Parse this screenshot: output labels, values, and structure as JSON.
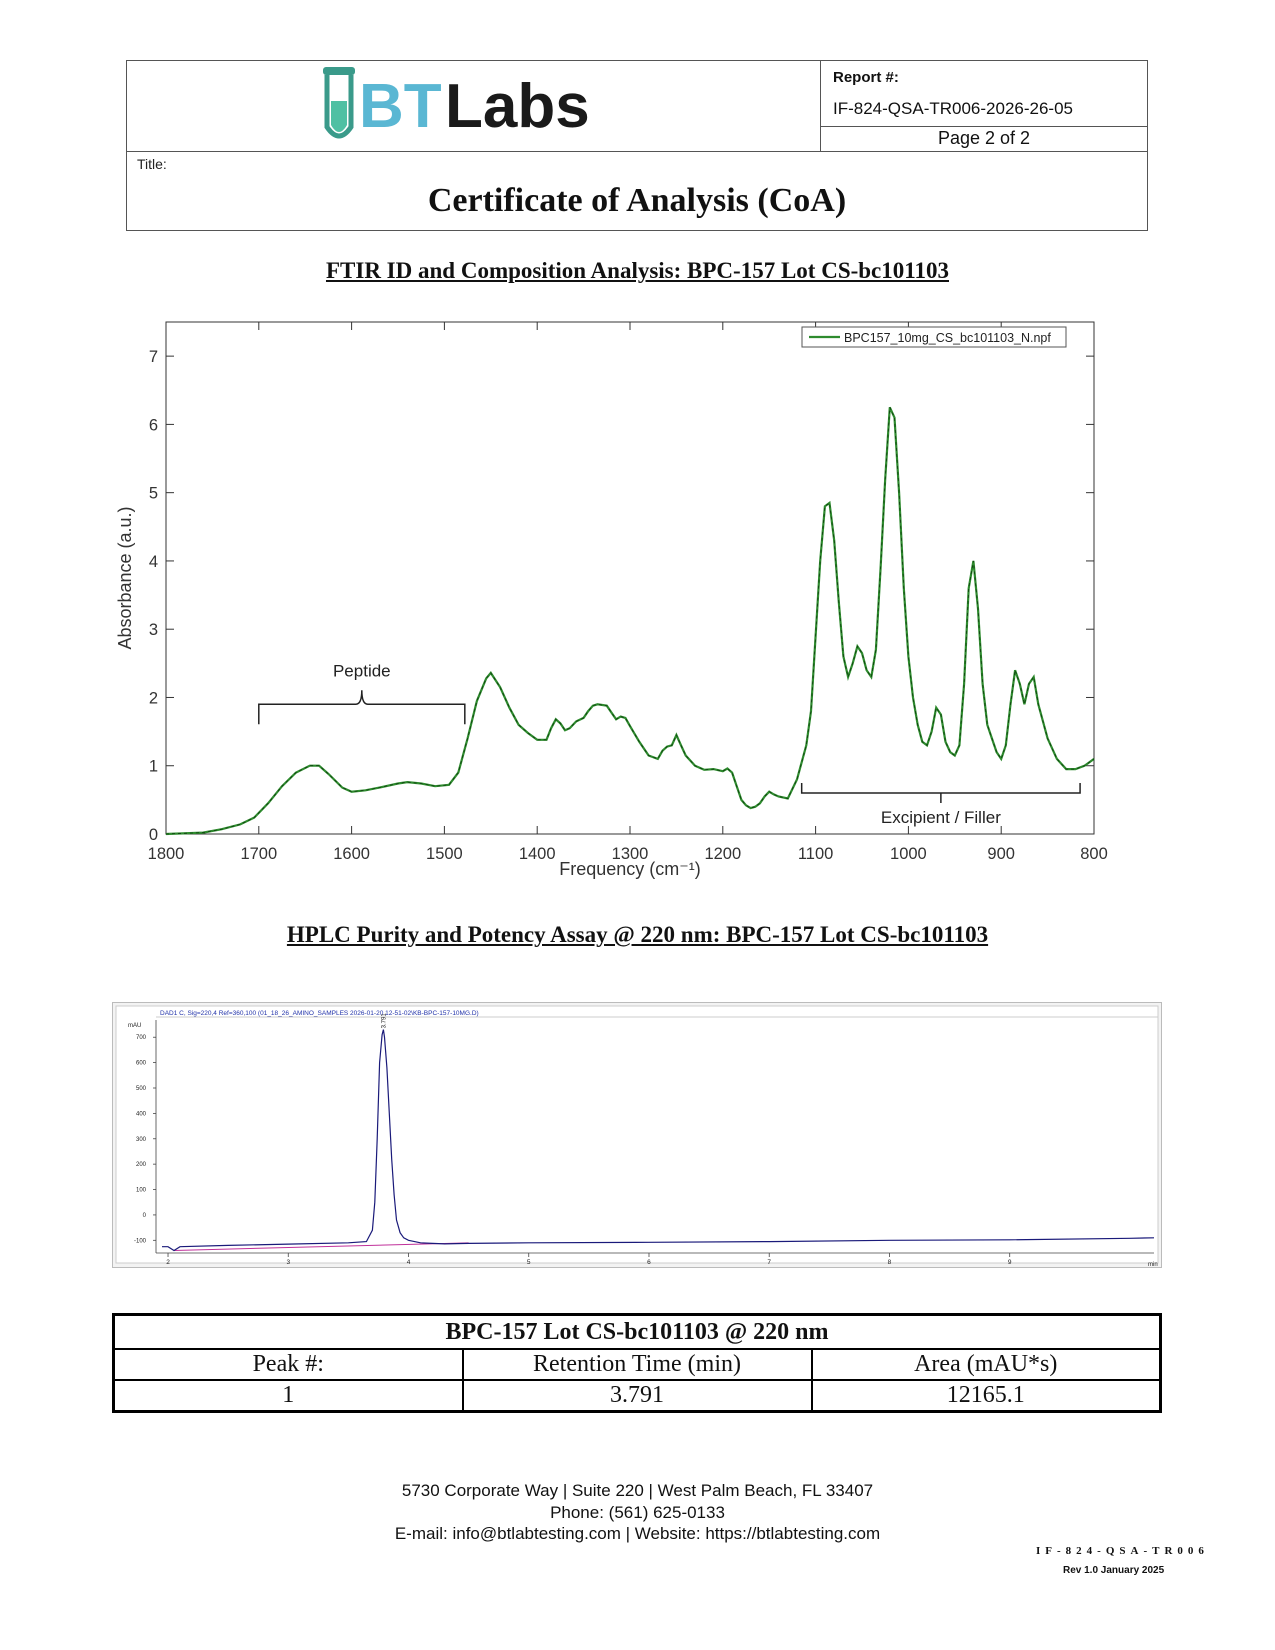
{
  "header": {
    "logo_text": "BTLabs",
    "report_label": "Report #:",
    "report_number": "IF-824-QSA-TR006-2026-26-05",
    "page": "Page 2 of 2",
    "title_label": "Title:",
    "title": "Certificate of Analysis (CoA)"
  },
  "ftir": {
    "section_title": "FTIR ID and Composition Analysis: BPC-157 Lot CS-bc101103",
    "legend_label": "BPC157_10mg_CS_bc101103_N.npf",
    "ylabel": "Absorbance (a.u.)",
    "xlabel": "Frequency (cm⁻¹)",
    "annotation_peptide": "Peptide",
    "annotation_excipient": "Excipient / Filler",
    "line_color": "#2e8b2e"
  },
  "hplc": {
    "section_title": "HPLC Purity and Potency Assay @ 220 nm: BPC-157 Lot CS-bc101103",
    "signal_header": "DAD1 C, Sig=220,4 Ref=360,100 (01_18_26_AMINO_SAMPLES 2026-01-20 12-51-02\\KB-BPC-157-10MG.D)",
    "y_unit": "mAU",
    "x_unit": "min",
    "peak_label": "3.791",
    "trace_color": "#1a1a7a",
    "baseline_color": "#c0309a"
  },
  "chart_data": [
    {
      "type": "line",
      "title": "",
      "xlabel": "Frequency (cm⁻¹)",
      "ylabel": "Absorbance (a.u.)",
      "xlim": [
        1800,
        800
      ],
      "ylim": [
        0,
        7.5
      ],
      "x_reversed": true,
      "xticks": [
        "1800",
        "1700",
        "1600",
        "1500",
        "1400",
        "1300",
        "1200",
        "1100",
        "1000",
        "900",
        "800"
      ],
      "yticks": [
        "0",
        "1",
        "2",
        "3",
        "4",
        "5",
        "6",
        "7"
      ],
      "legend": "top-right",
      "series": [
        {
          "name": "BPC157_10mg_CS_bc101103_N.npf",
          "x": [
            1800,
            1760,
            1740,
            1720,
            1705,
            1690,
            1675,
            1660,
            1645,
            1635,
            1625,
            1610,
            1600,
            1585,
            1570,
            1550,
            1540,
            1525,
            1510,
            1495,
            1485,
            1475,
            1465,
            1455,
            1450,
            1440,
            1430,
            1420,
            1410,
            1400,
            1390,
            1385,
            1380,
            1375,
            1370,
            1365,
            1358,
            1350,
            1345,
            1340,
            1335,
            1325,
            1320,
            1315,
            1310,
            1305,
            1300,
            1290,
            1280,
            1270,
            1265,
            1260,
            1255,
            1250,
            1245,
            1240,
            1230,
            1220,
            1210,
            1200,
            1195,
            1190,
            1185,
            1180,
            1175,
            1170,
            1165,
            1160,
            1155,
            1150,
            1145,
            1140,
            1130,
            1120,
            1110,
            1105,
            1100,
            1095,
            1090,
            1085,
            1080,
            1075,
            1070,
            1065,
            1060,
            1055,
            1050,
            1045,
            1040,
            1035,
            1030,
            1025,
            1020,
            1015,
            1010,
            1005,
            1000,
            995,
            990,
            985,
            980,
            975,
            970,
            965,
            960,
            955,
            950,
            945,
            940,
            935,
            930,
            925,
            920,
            915,
            910,
            905,
            900,
            895,
            890,
            885,
            880,
            875,
            870,
            865,
            860,
            850,
            840,
            830,
            820,
            810,
            800
          ],
          "y": [
            0.0,
            0.02,
            0.07,
            0.14,
            0.24,
            0.45,
            0.7,
            0.9,
            1.0,
            1.0,
            0.88,
            0.68,
            0.62,
            0.64,
            0.68,
            0.74,
            0.76,
            0.74,
            0.7,
            0.72,
            0.9,
            1.4,
            1.95,
            2.28,
            2.36,
            2.15,
            1.85,
            1.6,
            1.48,
            1.38,
            1.38,
            1.55,
            1.68,
            1.62,
            1.52,
            1.55,
            1.65,
            1.7,
            1.8,
            1.88,
            1.9,
            1.88,
            1.78,
            1.68,
            1.72,
            1.7,
            1.58,
            1.35,
            1.15,
            1.1,
            1.22,
            1.28,
            1.3,
            1.45,
            1.3,
            1.15,
            1.0,
            0.94,
            0.95,
            0.92,
            0.96,
            0.9,
            0.7,
            0.5,
            0.42,
            0.38,
            0.4,
            0.45,
            0.55,
            0.62,
            0.58,
            0.55,
            0.52,
            0.8,
            1.3,
            1.8,
            2.9,
            4.0,
            4.8,
            4.85,
            4.3,
            3.4,
            2.6,
            2.3,
            2.5,
            2.75,
            2.65,
            2.4,
            2.3,
            2.7,
            3.9,
            5.2,
            6.25,
            6.1,
            5.0,
            3.6,
            2.6,
            2.0,
            1.6,
            1.35,
            1.3,
            1.5,
            1.85,
            1.75,
            1.35,
            1.2,
            1.15,
            1.3,
            2.2,
            3.6,
            4.0,
            3.3,
            2.2,
            1.6,
            1.4,
            1.2,
            1.1,
            1.3,
            1.9,
            2.4,
            2.2,
            1.9,
            2.2,
            2.3,
            1.9,
            1.4,
            1.1,
            0.95,
            0.95,
            1.0,
            1.1
          ]
        }
      ]
    },
    {
      "type": "line",
      "title": "DAD1 C, Sig=220,4 Ref=360,100 (01_18_26_AMINO_SAMPLES 2026-01-20 12-51-02\\KB-BPC-157-10MG.D)",
      "xlabel": "min",
      "ylabel": "mAU",
      "xlim": [
        1.9,
        10.2
      ],
      "ylim": [
        -150,
        760
      ],
      "xticks": [
        "2",
        "3",
        "4",
        "5",
        "6",
        "7",
        "8",
        "9"
      ],
      "yticks": [
        "-100",
        "0",
        "100",
        "200",
        "300",
        "400",
        "500",
        "600",
        "700"
      ],
      "series": [
        {
          "name": "",
          "x": [
            1.95,
            2.0,
            2.05,
            2.1,
            2.5,
            3.0,
            3.5,
            3.65,
            3.7,
            3.72,
            3.74,
            3.76,
            3.78,
            3.791,
            3.8,
            3.82,
            3.84,
            3.86,
            3.88,
            3.9,
            3.93,
            3.96,
            4.0,
            4.05,
            4.1,
            4.2,
            4.3,
            4.5,
            5.0,
            6.0,
            7.0,
            8.0,
            9.0,
            10.0,
            10.2
          ],
          "y": [
            -125,
            -125,
            -140,
            -125,
            -120,
            -115,
            -110,
            -105,
            -60,
            50,
            300,
            600,
            710,
            730,
            700,
            580,
            400,
            220,
            80,
            -20,
            -70,
            -90,
            -100,
            -105,
            -110,
            -112,
            -114,
            -112,
            -110,
            -108,
            -105,
            -100,
            -98,
            -92,
            -90
          ]
        }
      ],
      "peaks": [
        {
          "rt": 3.791,
          "label": "3.791"
        }
      ]
    }
  ],
  "table": {
    "caption": "BPC-157 Lot CS-bc101103 @ 220 nm",
    "headers": [
      "Peak #:",
      "Retention Time (min)",
      "Area (mAU*s)"
    ],
    "rows": [
      [
        "1",
        "3.791",
        "12165.1"
      ]
    ]
  },
  "footer": {
    "address": "5730 Corporate Way | Suite 220 | West Palm Beach, FL 33407",
    "phone": "Phone: (561) 625-0133",
    "contact": "E-mail: info@btlabtesting.com | Website: https://btlabtesting.com",
    "form_code": "IF-824-QSA-TR006",
    "revision": "Rev 1.0 January 2025"
  }
}
